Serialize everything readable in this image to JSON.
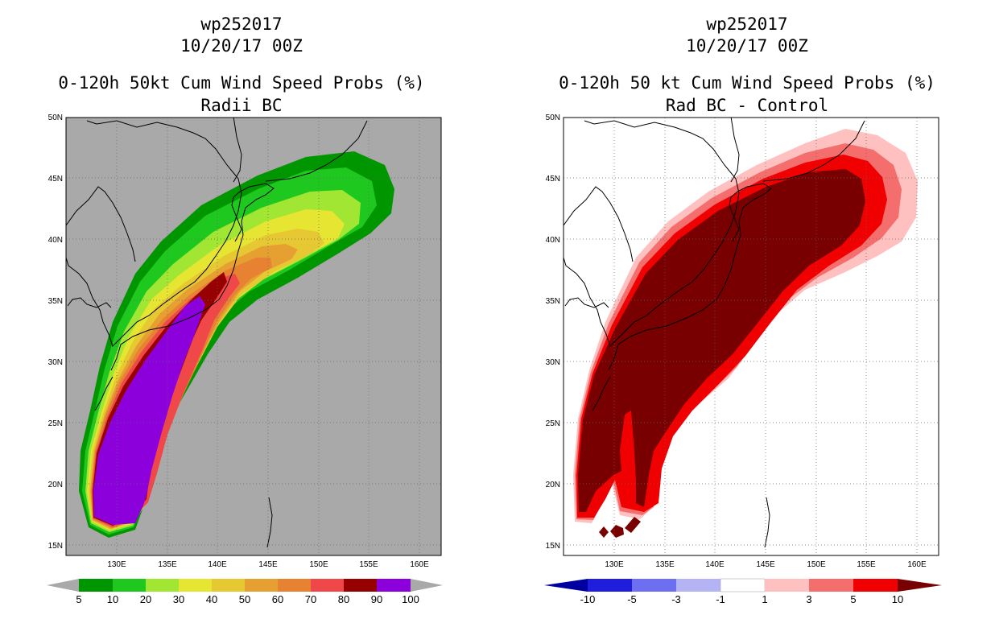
{
  "panels": [
    {
      "id": "left",
      "storm_id": "wp252017",
      "datetime": "10/20/17 00Z",
      "title": "0-120h 50kt Cum Wind Speed Probs (%)",
      "subtitle": "Radii BC",
      "background_color": "#a9a9a9",
      "lat_labels": [
        "50N",
        "45N",
        "40N",
        "35N",
        "30N",
        "25N",
        "20N",
        "15N"
      ],
      "lon_labels": [
        "130E",
        "135E",
        "140E",
        "145E",
        "150E",
        "155E",
        "160E"
      ],
      "colorbar": {
        "labels": [
          "5",
          "10",
          "20",
          "30",
          "40",
          "50",
          "60",
          "70",
          "80",
          "90",
          "100"
        ],
        "colors": [
          "#009600",
          "#1ec81e",
          "#a0e632",
          "#e6e632",
          "#e6c832",
          "#e6a032",
          "#e68232",
          "#f04848",
          "#960000",
          "#8c00dc"
        ],
        "end_color": "#a9a9a9"
      }
    },
    {
      "id": "right",
      "storm_id": "wp252017",
      "datetime": "10/20/17 00Z",
      "title": "0-120h 50 kt Cum Wind Speed Probs (%)",
      "subtitle": "Rad BC - Control",
      "background_color": "#ffffff",
      "lat_labels": [
        "50N",
        "45N",
        "40N",
        "35N",
        "30N",
        "25N",
        "20N",
        "15N"
      ],
      "lon_labels": [
        "130E",
        "135E",
        "140E",
        "145E",
        "150E",
        "155E",
        "160E"
      ],
      "colorbar": {
        "labels": [
          "-10",
          "-5",
          "-3",
          "-1",
          "1",
          "3",
          "5",
          "10"
        ],
        "colors": [
          "#1e1edc",
          "#6e6ef0",
          "#b4b4f5",
          "#ffffff",
          "#ffc0c0",
          "#f56e6e",
          "#f00000"
        ],
        "start_color": "#0000a0",
        "end_color": "#780000"
      }
    }
  ]
}
